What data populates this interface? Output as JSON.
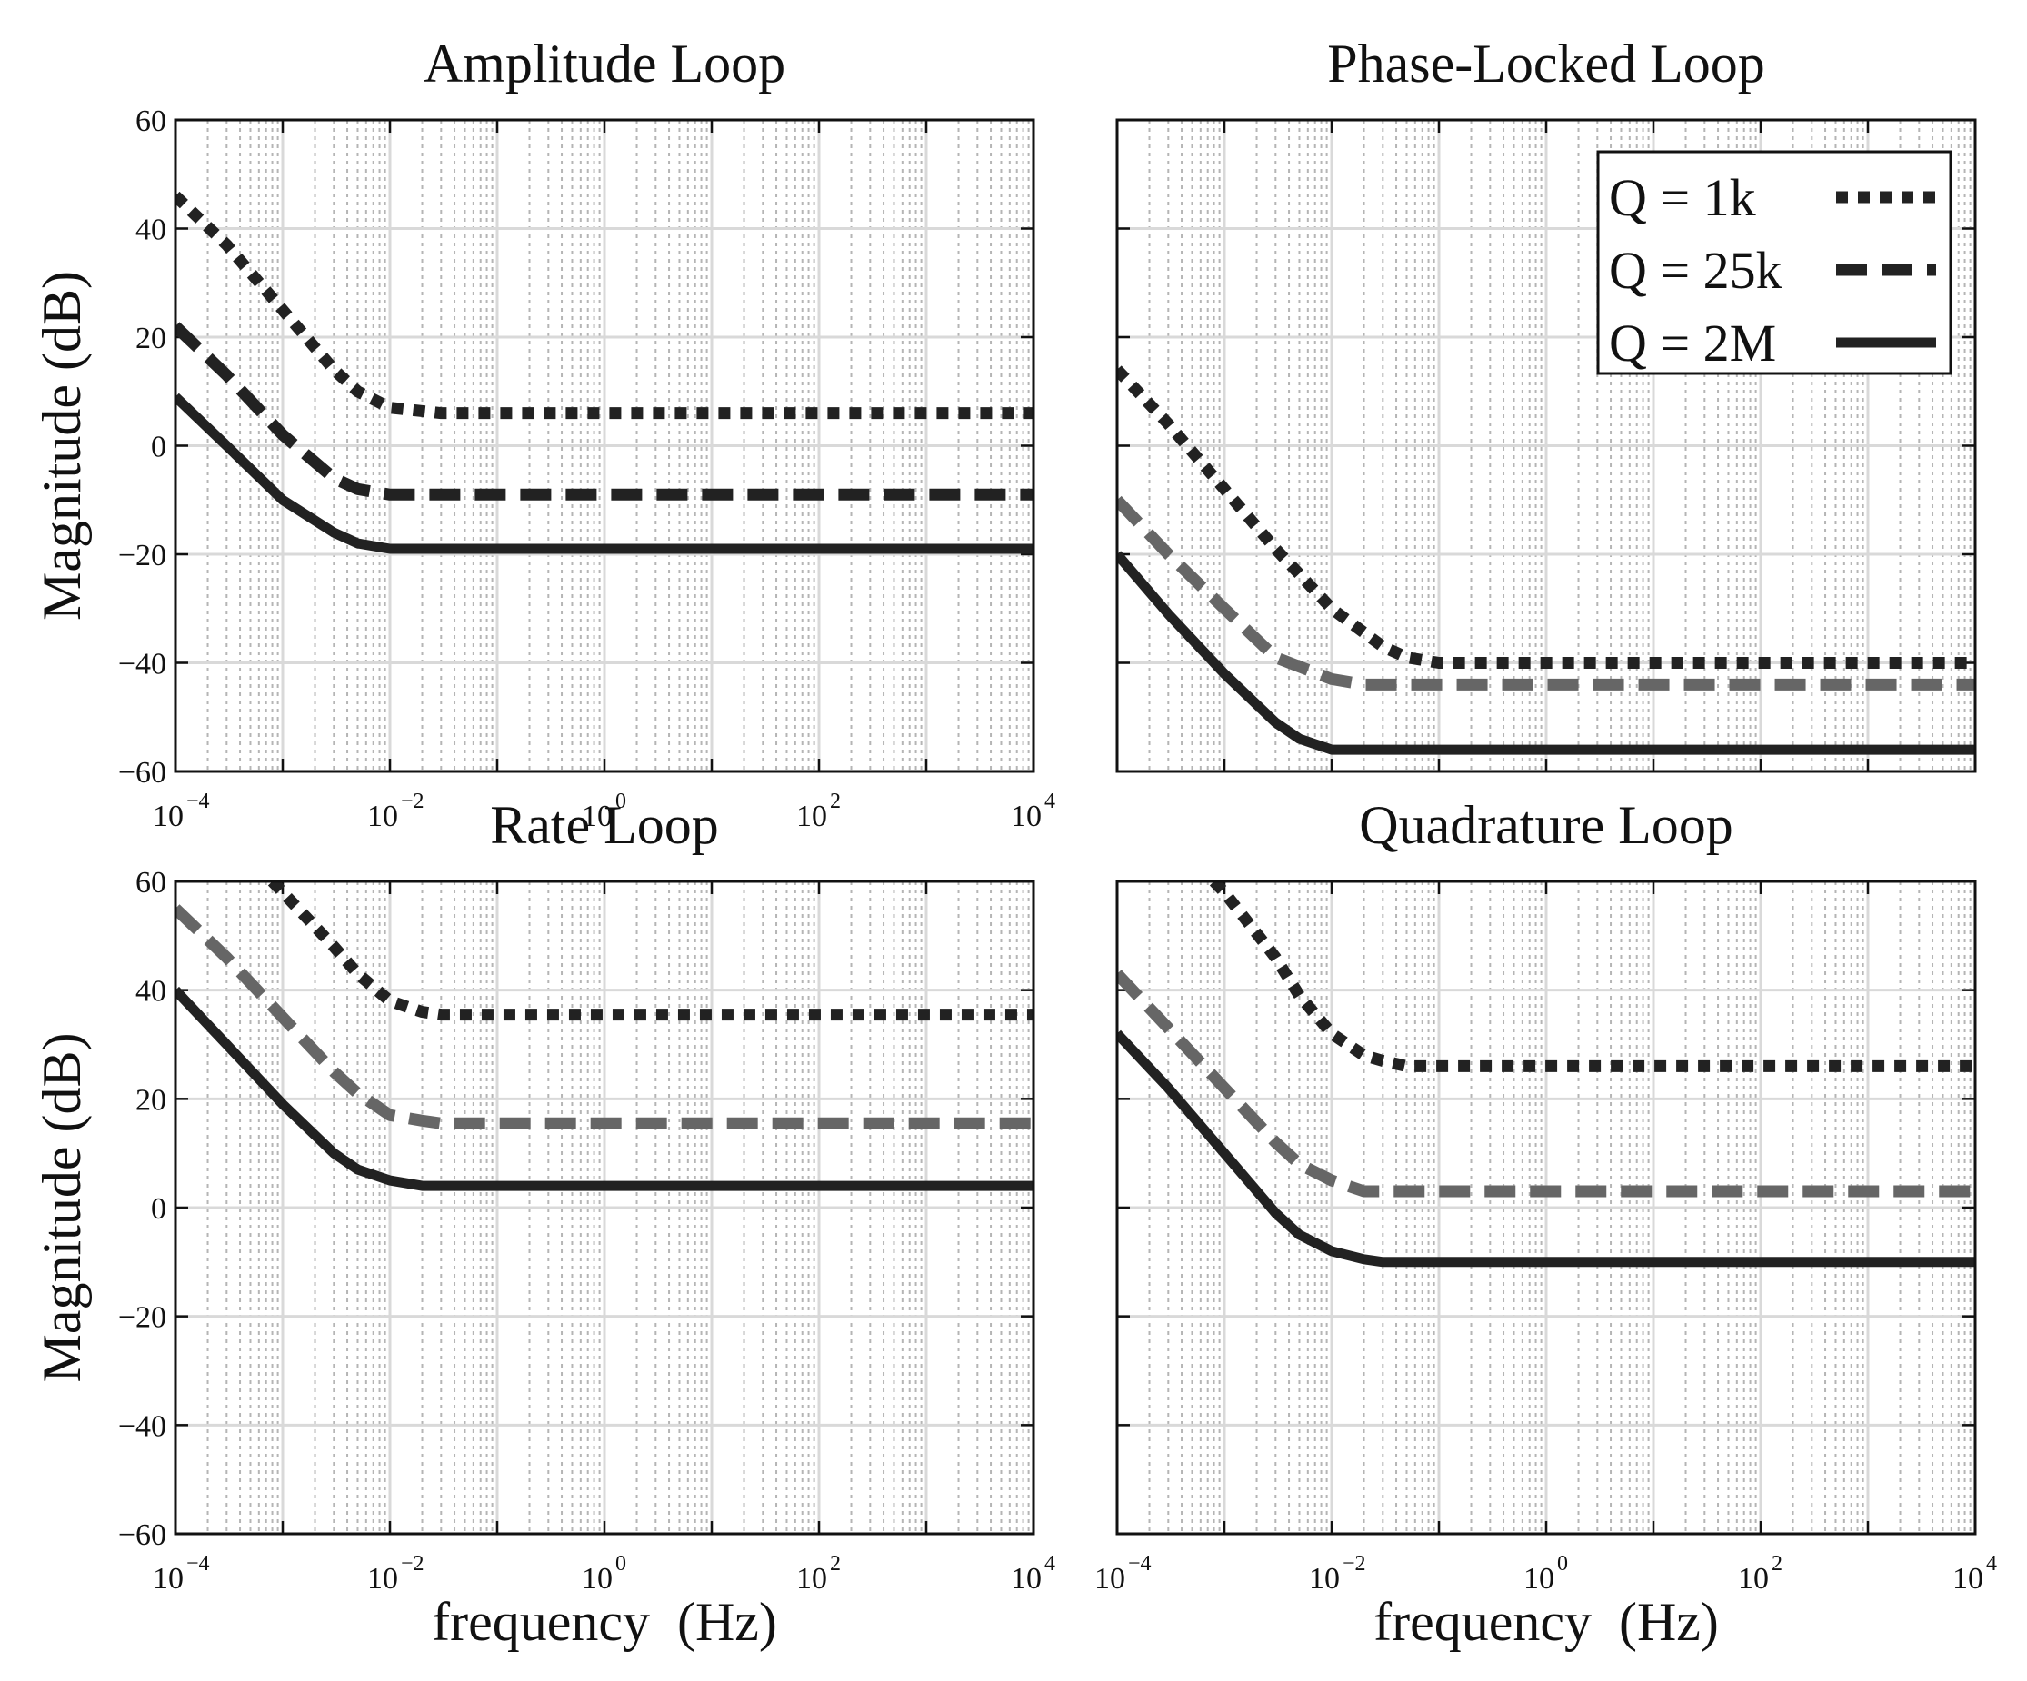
{
  "chart_data": [
    {
      "type": "line",
      "title": "Amplitude Loop",
      "xlabel": "",
      "ylabel": "Magnitude (dB)",
      "xscale": "log",
      "xlim": [
        0.0001,
        10000
      ],
      "ylim": [
        -60,
        60
      ],
      "grid": true,
      "xticks": [
        {
          "base": "10",
          "exp": "−4"
        },
        {
          "base": "10",
          "exp": "−2"
        },
        {
          "base": "10",
          "exp": "0"
        },
        {
          "base": "10",
          "exp": "2"
        },
        {
          "base": "10",
          "exp": "4"
        }
      ],
      "yticks": [
        "60",
        "40",
        "20",
        "0",
        "−20",
        "−40",
        "−60"
      ],
      "series": [
        {
          "name": "Q = 1k",
          "style": "dotted",
          "color": "#222222",
          "x": [
            0.0001,
            0.0003,
            0.001,
            0.003,
            0.005,
            0.01,
            0.03,
            0.1,
            1,
            10,
            100,
            1000,
            10000
          ],
          "values": [
            46,
            37,
            25,
            14,
            10,
            7,
            6,
            6,
            6,
            6,
            6,
            6,
            6
          ]
        },
        {
          "name": "Q = 25k",
          "style": "dashed",
          "color": "#222222",
          "x": [
            0.0001,
            0.0003,
            0.001,
            0.003,
            0.005,
            0.01,
            0.03,
            0.1,
            1,
            10,
            100,
            1000,
            10000
          ],
          "values": [
            22,
            13,
            2,
            -6,
            -8,
            -9,
            -9,
            -9,
            -9,
            -9,
            -9,
            -9,
            -9
          ]
        },
        {
          "name": "Q = 2M",
          "style": "solid",
          "color": "#222222",
          "x": [
            0.0001,
            0.0003,
            0.001,
            0.003,
            0.005,
            0.01,
            0.03,
            0.1,
            1,
            10,
            100,
            1000,
            10000
          ],
          "values": [
            9,
            0,
            -10,
            -16,
            -18,
            -19,
            -19,
            -19,
            -19,
            -19,
            -19,
            -19,
            -19
          ]
        }
      ]
    },
    {
      "type": "line",
      "title": "Phase-Locked Loop",
      "xlabel": "",
      "ylabel": "",
      "xscale": "log",
      "xlim": [
        0.0001,
        10000
      ],
      "ylim": [
        -60,
        60
      ],
      "grid": true,
      "legend_position": "top-right",
      "series": [
        {
          "name": "Q = 1k",
          "style": "dotted",
          "color": "#222222",
          "x": [
            0.0001,
            0.0003,
            0.001,
            0.003,
            0.01,
            0.03,
            0.05,
            0.1,
            0.3,
            1,
            10,
            100,
            1000,
            10000
          ],
          "values": [
            14,
            4,
            -8,
            -19,
            -30,
            -37,
            -39,
            -40,
            -40,
            -40,
            -40,
            -40,
            -40,
            -40
          ]
        },
        {
          "name": "Q = 25k",
          "style": "dashed",
          "color": "#666666",
          "x": [
            0.0001,
            0.0003,
            0.001,
            0.003,
            0.01,
            0.02,
            0.03,
            0.05,
            0.1,
            1,
            10,
            100,
            1000,
            10000
          ],
          "values": [
            -10,
            -20,
            -30,
            -39,
            -43,
            -44,
            -44,
            -44,
            -44,
            -44,
            -44,
            -44,
            -44,
            -44
          ]
        },
        {
          "name": "Q = 2M",
          "style": "solid",
          "color": "#222222",
          "x": [
            0.0001,
            0.0003,
            0.001,
            0.003,
            0.005,
            0.01,
            0.02,
            0.05,
            0.1,
            1,
            10,
            100,
            1000,
            10000
          ],
          "values": [
            -20,
            -31,
            -42,
            -51,
            -54,
            -56,
            -56,
            -56,
            -56,
            -56,
            -56,
            -56,
            -56,
            -56
          ]
        }
      ]
    },
    {
      "type": "line",
      "title": "Rate Loop",
      "xlabel": "frequency  (Hz)",
      "ylabel": "Magnitude (dB)",
      "xscale": "log",
      "xlim": [
        0.0001,
        10000
      ],
      "ylim": [
        -60,
        60
      ],
      "grid": true,
      "xticks": [
        {
          "base": "10",
          "exp": "−4"
        },
        {
          "base": "10",
          "exp": "−2"
        },
        {
          "base": "10",
          "exp": "0"
        },
        {
          "base": "10",
          "exp": "2"
        },
        {
          "base": "10",
          "exp": "4"
        }
      ],
      "yticks": [
        "60",
        "40",
        "20",
        "0",
        "−20",
        "−40",
        "−60"
      ],
      "series": [
        {
          "name": "Q = 1k",
          "style": "dotted",
          "color": "#222222",
          "x": [
            0.0008,
            0.001,
            0.003,
            0.005,
            0.01,
            0.02,
            0.03,
            0.1,
            1,
            10,
            100,
            1000,
            10000
          ],
          "values": [
            60,
            58,
            48,
            43,
            38,
            36,
            35.5,
            35.5,
            35.5,
            35.5,
            35.5,
            35.5,
            35.5
          ]
        },
        {
          "name": "Q = 25k",
          "style": "dashed",
          "color": "#666666",
          "x": [
            0.0001,
            0.0003,
            0.001,
            0.003,
            0.005,
            0.01,
            0.02,
            0.03,
            0.1,
            1,
            10,
            100,
            1000,
            10000
          ],
          "values": [
            55,
            46,
            35,
            25,
            21,
            17,
            16,
            15.5,
            15.5,
            15.5,
            15.5,
            15.5,
            15.5,
            15.5
          ]
        },
        {
          "name": "Q = 2M",
          "style": "solid",
          "color": "#222222",
          "x": [
            0.0001,
            0.0003,
            0.001,
            0.003,
            0.005,
            0.01,
            0.02,
            0.03,
            0.1,
            1,
            10,
            100,
            1000,
            10000
          ],
          "values": [
            40,
            30,
            19,
            10,
            7,
            5,
            4,
            4,
            4,
            4,
            4,
            4,
            4,
            4
          ]
        }
      ]
    },
    {
      "type": "line",
      "title": "Quadrature Loop",
      "xlabel": "frequency  (Hz)",
      "ylabel": "",
      "xscale": "log",
      "xlim": [
        0.0001,
        10000
      ],
      "ylim": [
        -60,
        60
      ],
      "grid": true,
      "xticks": [
        {
          "base": "10",
          "exp": "−4"
        },
        {
          "base": "10",
          "exp": "−2"
        },
        {
          "base": "10",
          "exp": "0"
        },
        {
          "base": "10",
          "exp": "2"
        },
        {
          "base": "10",
          "exp": "4"
        }
      ],
      "series": [
        {
          "name": "Q = 1k",
          "style": "dotted",
          "color": "#222222",
          "x": [
            0.0008,
            0.001,
            0.003,
            0.005,
            0.01,
            0.02,
            0.03,
            0.05,
            0.1,
            1,
            10,
            100,
            1000,
            10000
          ],
          "values": [
            60,
            58,
            46,
            39,
            32,
            28,
            27,
            26,
            26,
            26,
            26,
            26,
            26,
            26
          ]
        },
        {
          "name": "Q = 25k",
          "style": "dashed",
          "color": "#666666",
          "x": [
            0.0001,
            0.0003,
            0.001,
            0.003,
            0.005,
            0.01,
            0.02,
            0.03,
            0.05,
            0.1,
            1,
            10,
            100,
            1000,
            10000
          ],
          "values": [
            43,
            33,
            22,
            12,
            8,
            5,
            3,
            3,
            3,
            3,
            3,
            3,
            3,
            3,
            3
          ]
        },
        {
          "name": "Q = 2M",
          "style": "solid",
          "color": "#222222",
          "x": [
            0.0001,
            0.0003,
            0.001,
            0.003,
            0.005,
            0.01,
            0.02,
            0.03,
            0.05,
            0.1,
            1,
            10,
            100,
            1000,
            10000
          ],
          "values": [
            32,
            22,
            10,
            -1,
            -5,
            -8,
            -9.5,
            -10,
            -10,
            -10,
            -10,
            -10,
            -10,
            -10,
            -10
          ]
        }
      ]
    }
  ],
  "legend": {
    "entries": [
      {
        "label": "Q = 1k",
        "style": "dotted",
        "color": "#222222"
      },
      {
        "label": "Q = 25k",
        "style": "dashed",
        "color": "#222222"
      },
      {
        "label": "Q = 2M",
        "style": "solid",
        "color": "#222222"
      }
    ]
  }
}
